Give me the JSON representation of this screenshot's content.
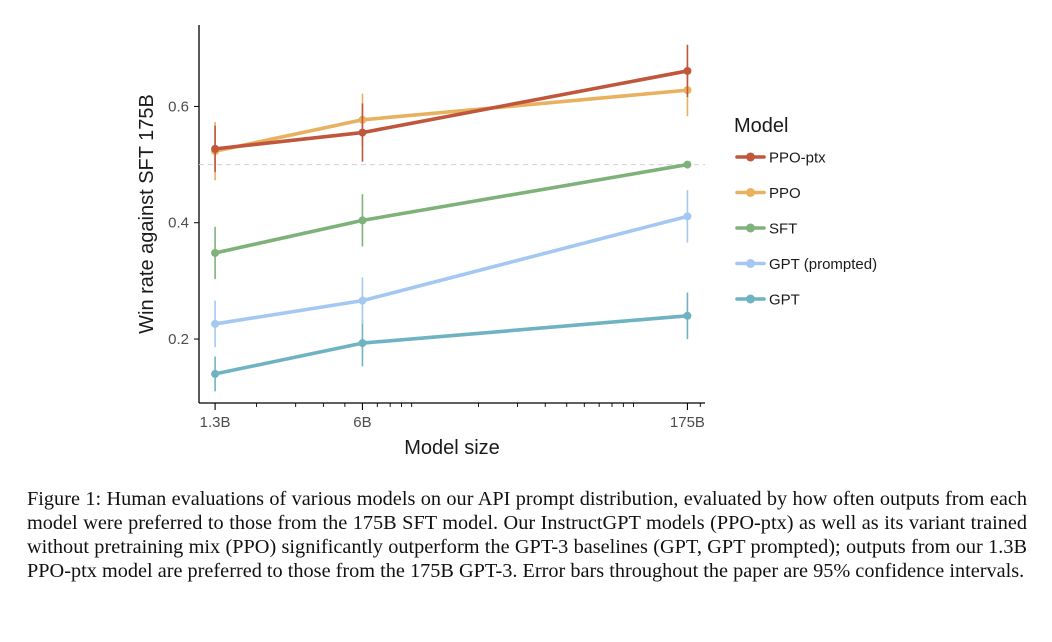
{
  "chart_data": {
    "type": "line",
    "title": "",
    "xlabel": "Model size",
    "ylabel": "Win rate against SFT 175B",
    "x_scale": "log",
    "x": [
      1.3,
      6,
      175
    ],
    "x_tick_labels": [
      "1.3B",
      "6B",
      "175B"
    ],
    "xlim": [
      1.1,
      210
    ],
    "ylim": [
      0.09,
      0.74
    ],
    "y_ticks": [
      0.2,
      0.4,
      0.6
    ],
    "y_tick_labels": [
      "0.2",
      "0.4",
      "0.6"
    ],
    "reference_line": 0.5,
    "grid": false,
    "legend_title": "Model",
    "legend_position": "right",
    "series": [
      {
        "name": "PPO-ptx",
        "color": "#c0573c",
        "values": [
          0.527,
          0.555,
          0.661
        ],
        "error": [
          0.04,
          0.05,
          0.045
        ]
      },
      {
        "name": "PPO",
        "color": "#e8b160",
        "values": [
          0.523,
          0.577,
          0.628
        ],
        "error": [
          0.05,
          0.045,
          0.045
        ]
      },
      {
        "name": "SFT",
        "color": "#7fb27a",
        "values": [
          0.348,
          0.404,
          0.5
        ],
        "error": [
          0.045,
          0.045,
          0.0
        ]
      },
      {
        "name": "GPT (prompted)",
        "color": "#a4c8f2",
        "values": [
          0.226,
          0.266,
          0.411
        ],
        "error": [
          0.04,
          0.04,
          0.045
        ]
      },
      {
        "name": "GPT",
        "color": "#6fb3c2",
        "values": [
          0.14,
          0.193,
          0.24
        ],
        "error": [
          0.03,
          0.04,
          0.04
        ]
      }
    ]
  },
  "caption": "Figure 1: Human evaluations of various models on our API prompt distribution, evaluated by how often outputs from each model were preferred to those from the 175B SFT model. Our InstructGPT models (PPO-ptx) as well as its variant trained without pretraining mix (PPO) significantly outperform the GPT-3 baselines (GPT, GPT prompted); outputs from our 1.3B PPO-ptx model are preferred to those from the 175B GPT-3. Error bars throughout the paper are 95% confidence intervals."
}
